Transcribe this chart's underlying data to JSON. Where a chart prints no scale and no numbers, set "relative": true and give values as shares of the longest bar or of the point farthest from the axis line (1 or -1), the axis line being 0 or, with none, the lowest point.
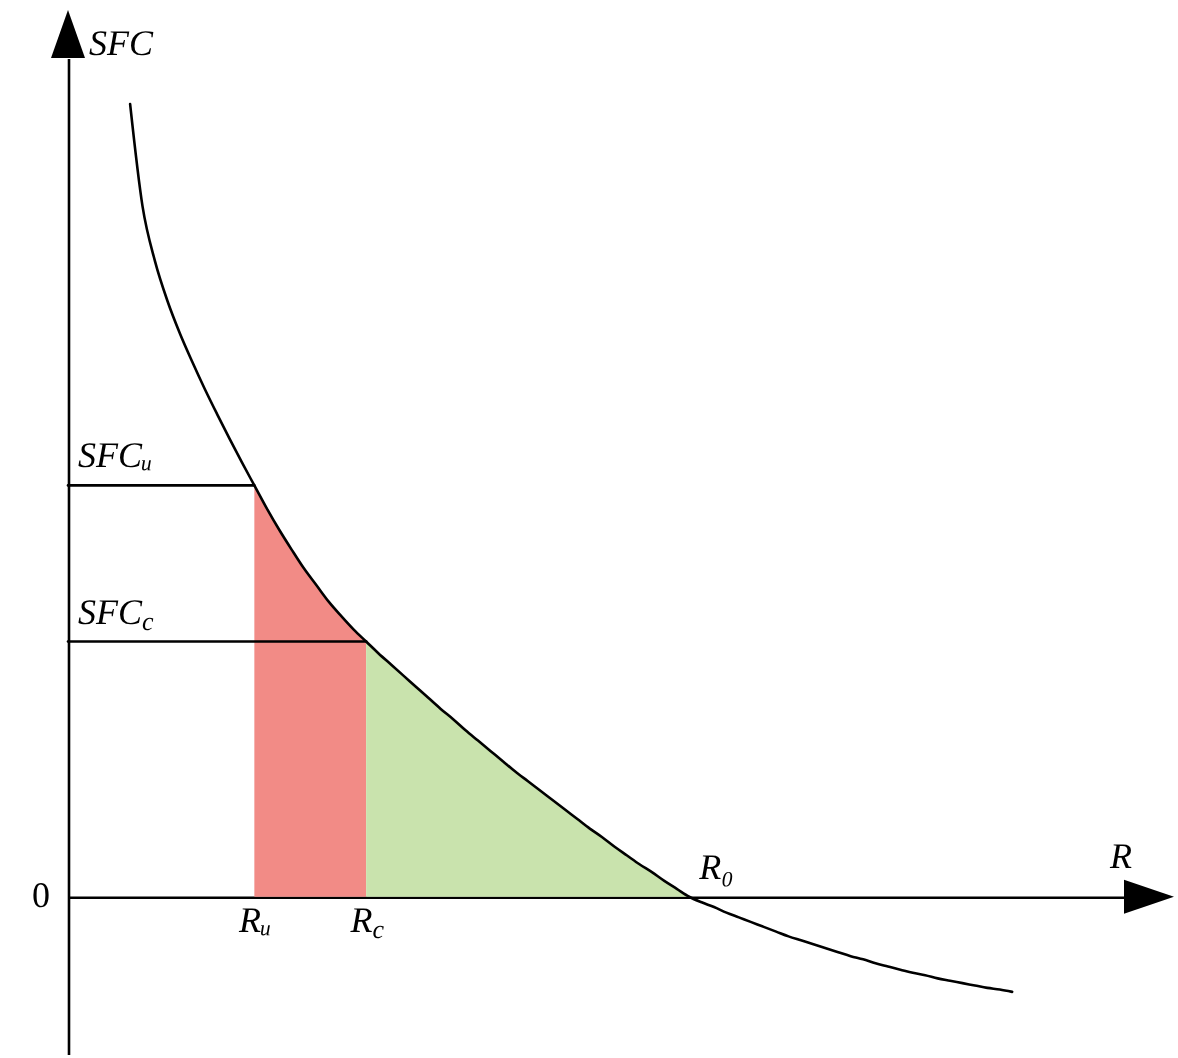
{
  "chart_data": {
    "type": "line",
    "relative": true,
    "xlabel": "R",
    "ylabel": "SFC",
    "categories": [
      null,
      null,
      null,
      null,
      null,
      null,
      null,
      null,
      null,
      null,
      null,
      null,
      null,
      null,
      null,
      "Rᵤ",
      null,
      null,
      null,
      null,
      null,
      null,
      null,
      null,
      "R$_{c}$",
      null,
      null,
      null,
      null,
      null,
      null,
      null,
      null,
      null,
      null,
      null,
      null,
      null,
      null,
      null,
      null,
      null,
      null,
      null,
      null,
      null,
      null,
      null,
      null,
      null,
      null,
      null,
      null,
      null,
      null,
      null,
      null,
      null,
      null,
      null,
      null,
      null,
      null,
      null,
      null,
      null,
      null,
      null,
      null,
      null,
      null,
      null,
      null,
      null,
      null,
      null,
      null,
      null,
      null,
      null,
      null,
      null,
      null,
      null,
      null,
      null
    ],
    "series": [
      {
        "type": "area",
        "color": "#f28b86",
        "values": [
          null,
          null,
          null,
          null,
          null,
          null,
          null,
          null,
          null,
          null,
          null,
          null,
          null,
          null,
          null,
          0.519,
          0.49,
          0.463,
          0.438,
          0.414,
          0.393,
          0.372,
          0.354,
          0.337,
          0.322,
          null,
          null,
          null,
          null,
          null,
          null,
          null,
          null,
          null,
          null,
          null,
          null,
          null,
          null,
          null,
          null,
          null,
          null,
          null,
          null,
          null,
          null,
          null,
          null,
          null,
          null,
          null,
          null,
          null,
          null,
          null,
          null,
          null,
          null,
          null,
          null,
          null,
          null,
          null,
          null,
          null,
          null,
          null,
          null,
          null,
          null,
          null,
          null,
          null,
          null,
          null,
          null,
          null,
          null,
          null,
          null,
          null,
          null,
          null,
          null,
          null
        ]
      },
      {
        "type": "area",
        "color": "#c9e3ad",
        "values": [
          null,
          null,
          null,
          null,
          null,
          null,
          null,
          null,
          null,
          null,
          null,
          null,
          null,
          null,
          null,
          null,
          null,
          null,
          null,
          null,
          null,
          null,
          null,
          null,
          0.322,
          0.307,
          0.293,
          0.279,
          0.265,
          0.251,
          0.237,
          0.224,
          0.21,
          0.197,
          0.184,
          0.171,
          0.158,
          0.146,
          0.134,
          0.122,
          0.11,
          0.098,
          0.086,
          0.075,
          0.063,
          0.052,
          0.041,
          0.031,
          0.02,
          0.01,
          0,
          null,
          null,
          null,
          null,
          null,
          null,
          null,
          null,
          null,
          null,
          null,
          null,
          null,
          null,
          null,
          null,
          null,
          null,
          null,
          null,
          null,
          null,
          null,
          null,
          null,
          null,
          null,
          null,
          null,
          null,
          null,
          null,
          null,
          null,
          null
        ]
      },
      {
        "color": "#000000",
        "values": [
          null,
          null,
          null,
          null,
          null,
          1,
          0.871,
          0.802,
          0.752,
          0.711,
          0.675,
          0.641,
          0.609,
          0.578,
          0.548,
          0.519,
          0.49,
          0.463,
          0.438,
          0.414,
          0.393,
          0.372,
          0.354,
          0.337,
          0.322,
          0.307,
          0.293,
          0.279,
          0.265,
          0.251,
          0.237,
          0.224,
          0.21,
          0.197,
          0.184,
          0.171,
          0.158,
          0.146,
          0.134,
          0.122,
          0.11,
          0.098,
          0.086,
          0.075,
          0.063,
          0.052,
          0.041,
          0.031,
          0.02,
          0.01,
          0,
          -0.007,
          -0.013,
          -0.02,
          -0.026,
          -0.032,
          -0.038,
          -0.044,
          -0.05,
          -0.055,
          -0.06,
          -0.065,
          -0.07,
          -0.075,
          -0.079,
          -0.084,
          -0.088,
          -0.092,
          -0.096,
          -0.099,
          -0.103,
          -0.106,
          -0.109,
          -0.112,
          -0.115,
          -0.117,
          -0.12,
          null,
          null,
          null,
          null,
          null,
          null,
          null,
          null,
          null
        ]
      },
      {
        "color": "#000000",
        "values": [
          0.519,
          0.519,
          0.519,
          0.519,
          0.519,
          0.519,
          0.519,
          0.519,
          0.519,
          0.519,
          0.519,
          0.519,
          0.519,
          0.519,
          0.519,
          0.519,
          null,
          null,
          null,
          null,
          null,
          null,
          null,
          null,
          null,
          null,
          null,
          null,
          null,
          null,
          null,
          null,
          null,
          null,
          null,
          null,
          null,
          null,
          null,
          null,
          null,
          null,
          null,
          null,
          null,
          null,
          null,
          null,
          null,
          null,
          null,
          null,
          null,
          null,
          null,
          null,
          null,
          null,
          null,
          null,
          null,
          null,
          null,
          null,
          null,
          null,
          null,
          null,
          null,
          null,
          null,
          null,
          null,
          null,
          null,
          null,
          null,
          null,
          null,
          null,
          null,
          null,
          null,
          null,
          null,
          null
        ]
      },
      {
        "color": "#000000",
        "values": [
          0.322,
          0.322,
          0.322,
          0.322,
          0.322,
          0.322,
          0.322,
          0.322,
          0.322,
          0.322,
          0.322,
          0.322,
          0.322,
          0.322,
          0.322,
          0.322,
          0.322,
          0.322,
          0.322,
          0.322,
          0.322,
          0.322,
          0.322,
          0.322,
          0.322,
          null,
          null,
          null,
          null,
          null,
          null,
          null,
          null,
          null,
          null,
          null,
          null,
          null,
          null,
          null,
          null,
          null,
          null,
          null,
          null,
          null,
          null,
          null,
          null,
          null,
          null,
          null,
          null,
          null,
          null,
          null,
          null,
          null,
          null,
          null,
          null,
          null,
          null,
          null,
          null,
          null,
          null,
          null,
          null,
          null,
          null,
          null,
          null,
          null,
          null,
          null,
          null,
          null,
          null,
          null,
          null,
          null,
          null,
          null,
          null,
          null
        ]
      }
    ],
    "annotations": [
      "0",
      {
        "text": "SFCᵤ",
        "y": 0.519
      },
      {
        "text": "SFC$_{c}$",
        "y": 0.322
      },
      {
        "text": "R₀",
        "y": 0
      }
    ]
  }
}
